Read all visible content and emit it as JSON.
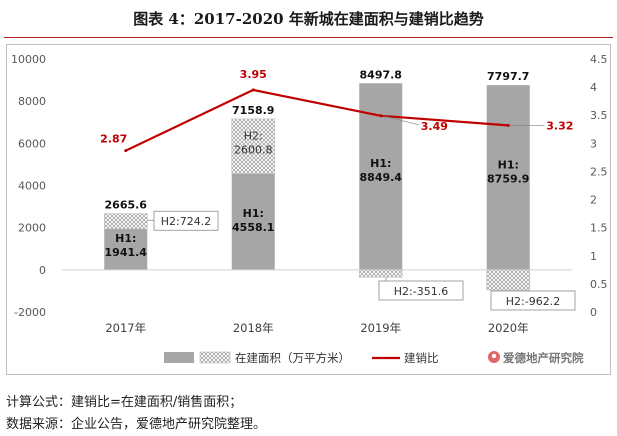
{
  "title": "图表 4：2017-2020 年新城在建面积与建销比趋势",
  "notes": {
    "formula": "计算公式：建销比=在建面积/销售面积；",
    "source": "数据来源：企业公告，爱德地产研究院整理。"
  },
  "logo": {
    "text": "爱德地产研究院",
    "icon": "pin-logo-icon"
  },
  "colors": {
    "h1": "#a6a6a6",
    "ratio_line": "#c00000",
    "hatch": "#d9d9d9"
  },
  "chart_data": {
    "type": "bar",
    "categories": [
      "2017年",
      "2018年",
      "2019年",
      "2020年"
    ],
    "series": [
      {
        "name": "在建面积（万平方米）",
        "values": [
          2665.6,
          7158.9,
          8497.8,
          7797.7
        ]
      },
      {
        "name": "H1",
        "values": [
          1941.4,
          4558.1,
          8849.4,
          8759.9
        ]
      },
      {
        "name": "H2",
        "values": [
          724.2,
          2600.8,
          -351.6,
          -962.2
        ]
      },
      {
        "name": "建销比",
        "values": [
          2.87,
          3.95,
          3.49,
          3.32
        ],
        "axis": "right",
        "type": "line"
      }
    ],
    "bar_labels": {
      "total": [
        "2665.6",
        "7158.9",
        "8497.8",
        "7797.7"
      ],
      "h1": [
        "H1:\n1941.4",
        "H1:\n4558.1",
        "H1:\n8849.4",
        "H1:\n8759.9"
      ],
      "h2": [
        "H2:724.2",
        "H2:\n2600.8",
        "H2:-351.6",
        "H2:-962.2"
      ],
      "ratio": [
        "2.87",
        "3.95",
        "3.49",
        "3.32"
      ]
    },
    "y_left": {
      "min": -2000,
      "max": 10000,
      "ticks": [
        "10000",
        "8000",
        "6000",
        "4000",
        "2000",
        "0",
        "-2000"
      ]
    },
    "y_right": {
      "min": 0,
      "max": 4.5,
      "ticks": [
        "4.5",
        "4",
        "3.5",
        "3",
        "2.5",
        "2",
        "1.5",
        "1",
        "0.5",
        "0"
      ]
    },
    "legend": {
      "placement": "bottom",
      "items": [
        "在建面积（万平方米）",
        "建销比"
      ]
    },
    "grid": false
  }
}
